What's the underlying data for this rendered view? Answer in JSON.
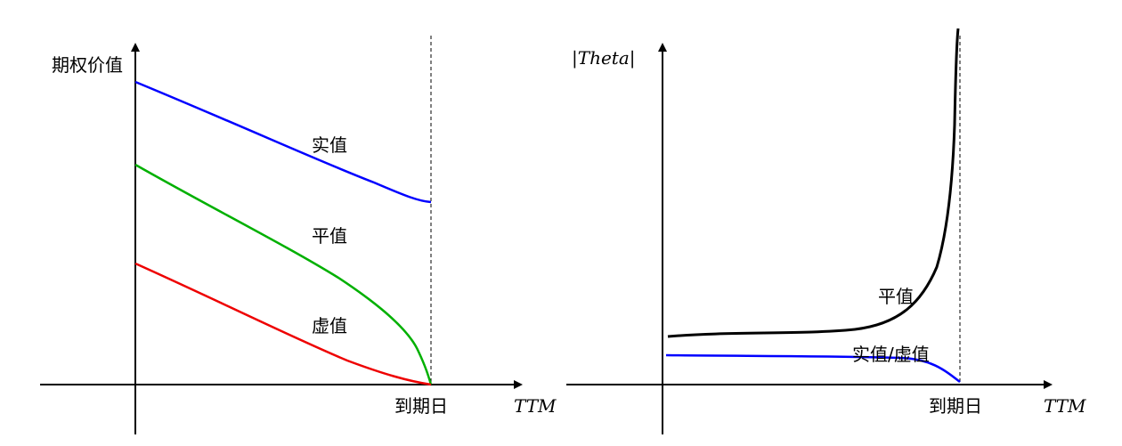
{
  "left_panel": {
    "y_axis_label": "期权价值",
    "x_axis_label": "TTM",
    "expiry_label": "到期日",
    "curves": [
      {
        "key": "itm",
        "label": "实值",
        "color": "#0000ff"
      },
      {
        "key": "atm",
        "label": "平值",
        "color": "#00b000"
      },
      {
        "key": "otm",
        "label": "虚值",
        "color": "#ee0000"
      }
    ]
  },
  "right_panel": {
    "y_axis_label": "|Theta|",
    "x_axis_label": "TTM",
    "expiry_label": "到期日",
    "curves": [
      {
        "key": "atm",
        "label": "平值",
        "color": "#000000"
      },
      {
        "key": "itm_otm",
        "label": "实值/虚值",
        "color": "#0000ff"
      }
    ]
  }
}
